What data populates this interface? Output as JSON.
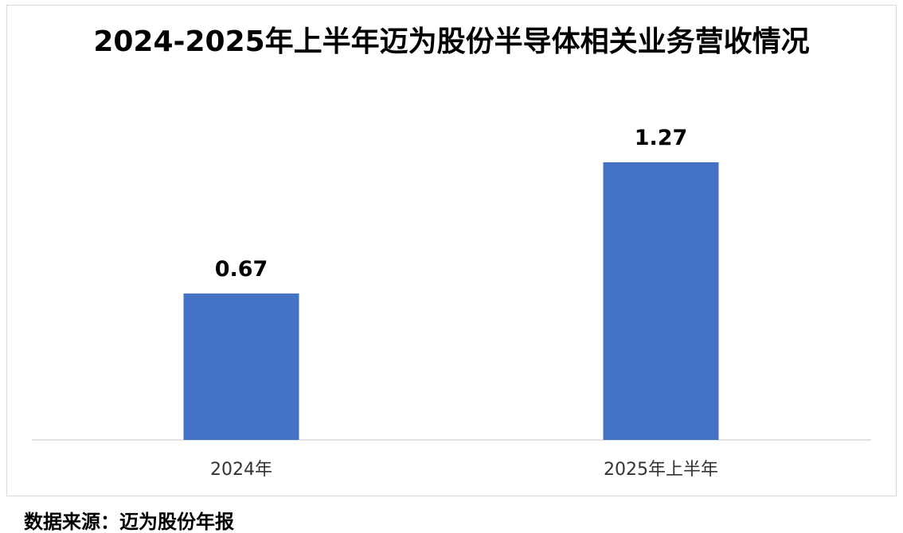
{
  "chart_data": {
    "type": "bar",
    "title": "2024-2025年上半年迈为股份半导体相关业务营收情况",
    "categories": [
      "2024年",
      "2025年上半年"
    ],
    "values": [
      0.67,
      1.27
    ],
    "data_labels": [
      "0.67",
      "1.27"
    ],
    "ylim": [
      0,
      1.27
    ],
    "xlabel": "",
    "ylabel": "",
    "grid": false,
    "bar_color": "#4472C4"
  },
  "source_text": "数据来源：迈为股份年报"
}
